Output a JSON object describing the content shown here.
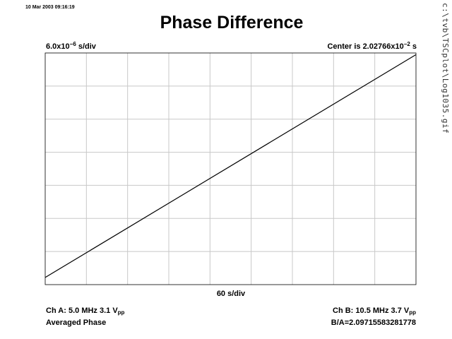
{
  "header": {
    "timestamp": "10 Mar 2003 09:16:19",
    "title": "Phase Difference",
    "x_scale_prefix": "6.0x10",
    "x_scale_exp": "−6",
    "x_scale_suffix": " s/div",
    "center_prefix": "Center is 2.02766x10",
    "center_exp": "−2",
    "center_suffix": " s"
  },
  "axis": {
    "x_div_label": "60 s/div"
  },
  "footer": {
    "ch_a_prefix": "Ch A: 5.0 MHz 3.1 V",
    "ch_a_sub": "pp",
    "mode": "Averaged Phase",
    "ch_b_prefix": "Ch B: 10.5 MHz 3.7 V",
    "ch_b_sub": "pp",
    "ratio": "B/A=2.09715583281778"
  },
  "side": {
    "file_path": "c:\\tvb\\TSCplot\\Log1035.gif"
  },
  "chart_data": {
    "type": "line",
    "title": "Phase Difference",
    "xlabel": "60 s/div",
    "ylabel": "6.0x10−6 s/div",
    "x_divisions": 9,
    "y_divisions": 7,
    "grid": true,
    "xlim": [
      0,
      540
    ],
    "ylim": [
      -2.1e-05,
      2.1e-05
    ],
    "series": [
      {
        "x": [
          0,
          540
        ],
        "y": [
          -1.97e-05,
          2.07e-05
        ]
      }
    ],
    "line_color": "#000000",
    "grid_color": "#c8c8c8"
  }
}
